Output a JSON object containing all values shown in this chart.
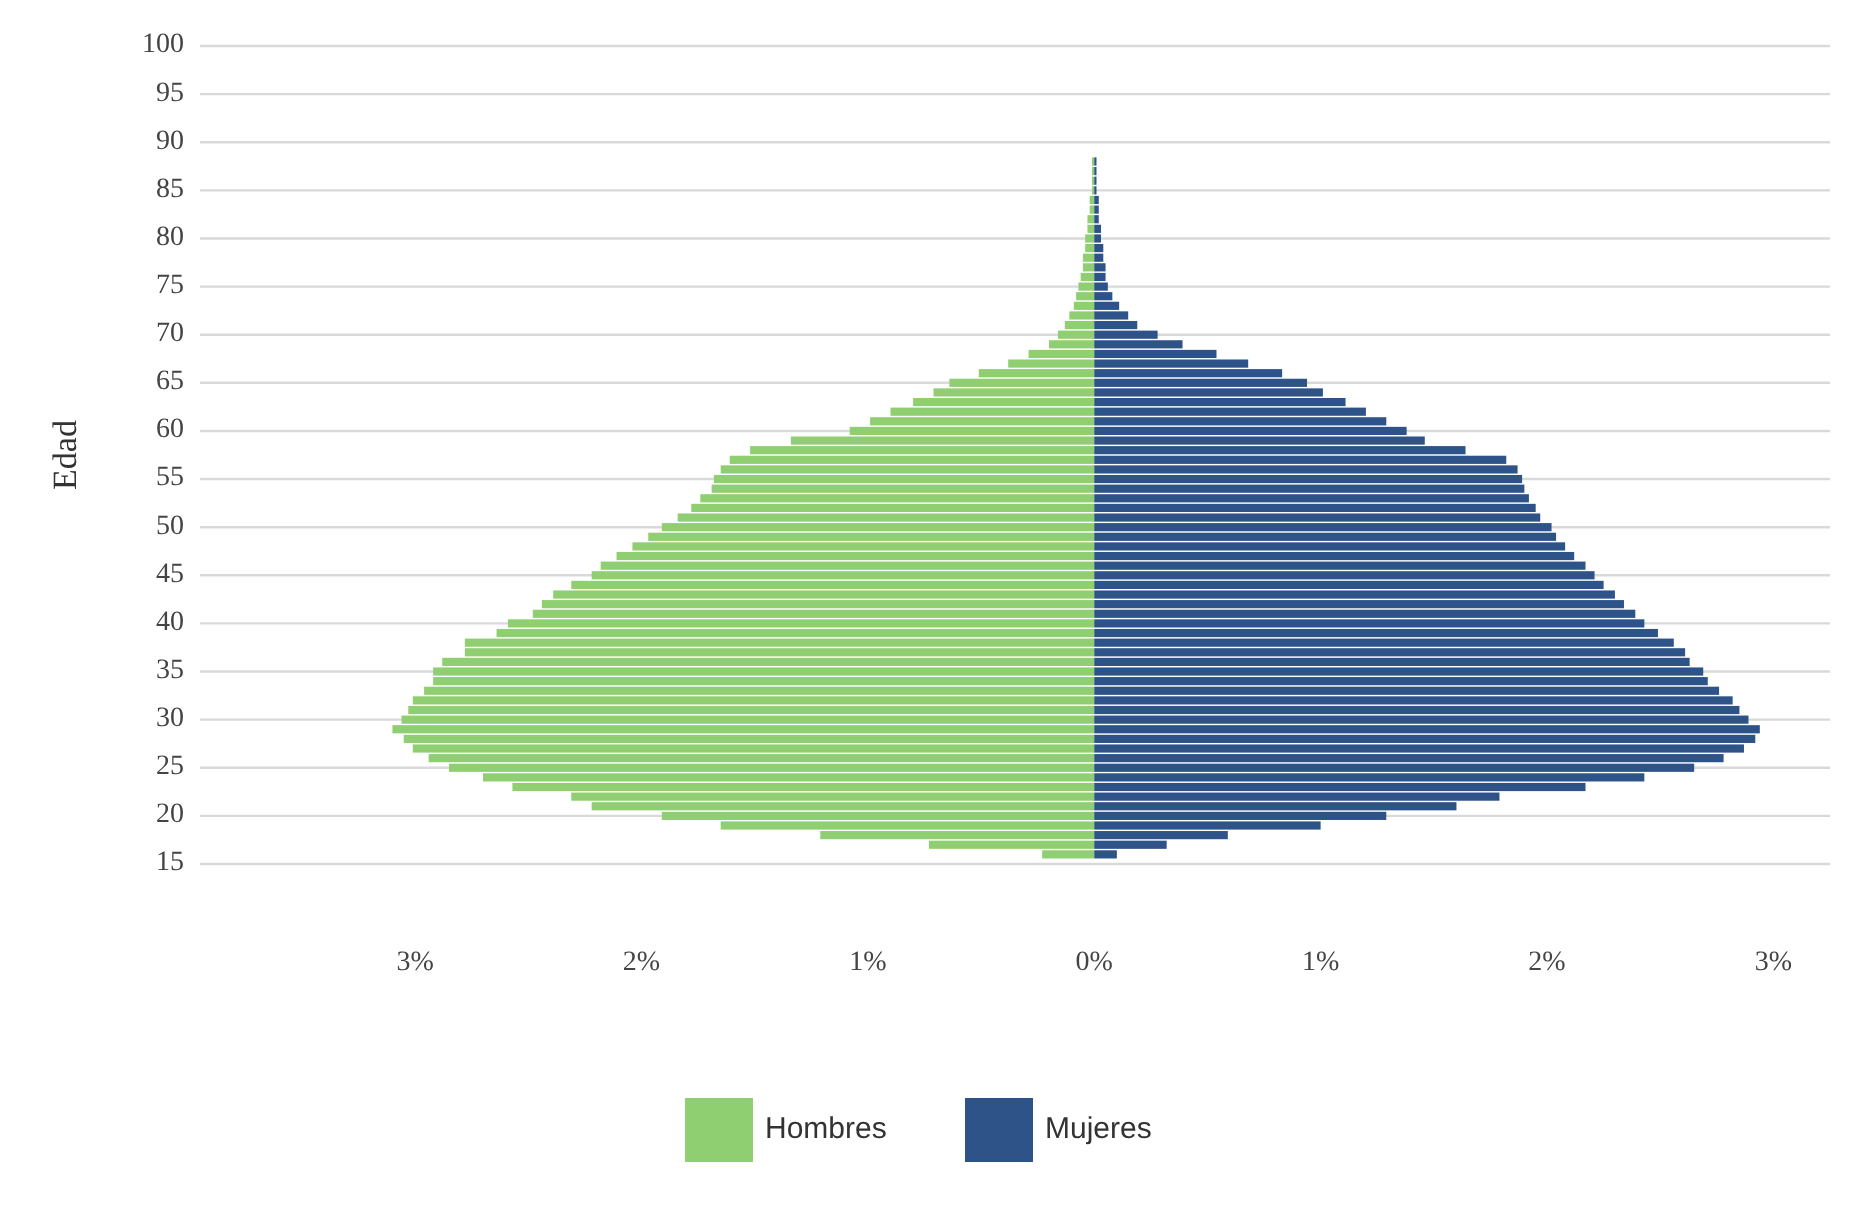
{
  "chart_data": {
    "type": "bar",
    "orientation": "horizontal",
    "stacked": true,
    "ylabel": "Edad",
    "x": [
      16,
      17,
      18,
      19,
      20,
      21,
      22,
      23,
      24,
      25,
      26,
      27,
      28,
      29,
      30,
      31,
      32,
      33,
      34,
      35,
      36,
      37,
      38,
      39,
      40,
      41,
      42,
      43,
      44,
      45,
      46,
      47,
      48,
      49,
      50,
      51,
      52,
      53,
      54,
      55,
      56,
      57,
      58,
      59,
      60,
      61,
      62,
      63,
      64,
      65,
      66,
      67,
      68,
      69,
      70,
      71,
      72,
      73,
      74,
      75,
      76,
      77,
      78,
      79,
      80,
      81,
      82,
      83,
      84,
      85,
      86,
      87,
      88
    ],
    "series": [
      {
        "name": "Hombres",
        "color": "#8fcf72",
        "values": [
          -0.23,
          -0.73,
          -1.21,
          -1.65,
          -1.91,
          -2.22,
          -2.31,
          -2.57,
          -2.7,
          -2.85,
          -2.94,
          -3.01,
          -3.05,
          -3.1,
          -3.06,
          -3.03,
          -3.01,
          -2.96,
          -2.92,
          -2.92,
          -2.88,
          -2.78,
          -2.78,
          -2.64,
          -2.59,
          -2.48,
          -2.44,
          -2.39,
          -2.31,
          -2.22,
          -2.18,
          -2.11,
          -2.04,
          -1.97,
          -1.91,
          -1.84,
          -1.78,
          -1.74,
          -1.69,
          -1.68,
          -1.65,
          -1.61,
          -1.52,
          -1.34,
          -1.08,
          -0.99,
          -0.9,
          -0.8,
          -0.71,
          -0.64,
          -0.51,
          -0.38,
          -0.29,
          -0.2,
          -0.16,
          -0.13,
          -0.11,
          -0.09,
          -0.08,
          -0.07,
          -0.06,
          -0.05,
          -0.05,
          -0.04,
          -0.04,
          -0.03,
          -0.03,
          -0.02,
          -0.02,
          -0.01,
          -0.01,
          -0.01,
          -0.01
        ]
      },
      {
        "name": "Mujeres",
        "color": "#2e5389",
        "values": [
          0.1,
          0.32,
          0.59,
          1.0,
          1.29,
          1.6,
          1.79,
          2.17,
          2.43,
          2.65,
          2.78,
          2.87,
          2.92,
          2.94,
          2.89,
          2.85,
          2.82,
          2.76,
          2.71,
          2.69,
          2.63,
          2.61,
          2.56,
          2.49,
          2.43,
          2.39,
          2.34,
          2.3,
          2.25,
          2.21,
          2.17,
          2.12,
          2.08,
          2.04,
          2.02,
          1.97,
          1.95,
          1.92,
          1.9,
          1.89,
          1.87,
          1.82,
          1.64,
          1.46,
          1.38,
          1.29,
          1.2,
          1.11,
          1.01,
          0.94,
          0.83,
          0.68,
          0.54,
          0.39,
          0.28,
          0.19,
          0.15,
          0.11,
          0.08,
          0.06,
          0.05,
          0.05,
          0.04,
          0.04,
          0.03,
          0.03,
          0.02,
          0.02,
          0.02,
          0.01,
          0.01,
          0.01,
          0.01
        ]
      }
    ],
    "xlim": [
      -3.95,
      3.25
    ],
    "xticks": [
      {
        "value": -3,
        "label": "3%"
      },
      {
        "value": -2,
        "label": "2%"
      },
      {
        "value": -1,
        "label": "1%"
      },
      {
        "value": 0,
        "label": "0%"
      },
      {
        "value": 1,
        "label": "1%"
      },
      {
        "value": 2,
        "label": "2%"
      },
      {
        "value": 3,
        "label": "3%"
      }
    ],
    "ylim": [
      15,
      100
    ],
    "yticks": [
      15,
      20,
      25,
      30,
      35,
      40,
      45,
      50,
      55,
      60,
      65,
      70,
      75,
      80,
      85,
      90,
      95,
      100
    ],
    "grid": "y",
    "legend": "bottom"
  }
}
